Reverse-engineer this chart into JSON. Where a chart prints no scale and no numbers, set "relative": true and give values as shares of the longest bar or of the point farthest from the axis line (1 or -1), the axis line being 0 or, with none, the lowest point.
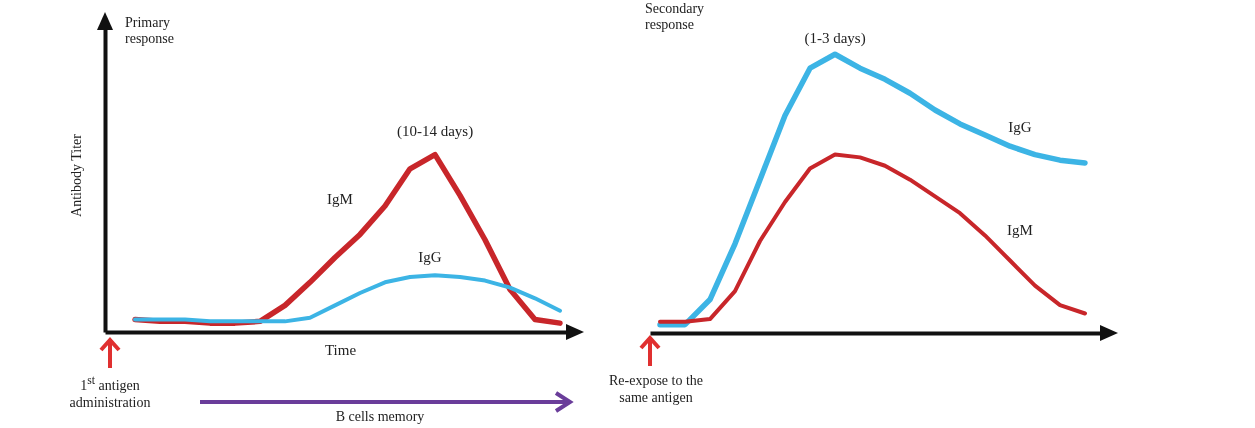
{
  "chart_data": [
    {
      "type": "line",
      "title": "Primary response",
      "ylabel": "Antibody Titer",
      "xlabel": "Time",
      "relative": true,
      "categories": [
        null,
        null,
        null,
        null,
        null,
        null,
        null,
        null,
        null,
        null,
        null,
        null,
        null,
        null,
        null,
        null,
        null,
        null
      ],
      "series": [
        {
          "name": "IgM",
          "color": "#c8262a",
          "values": [
            0.07,
            0.06,
            0.06,
            0.05,
            0.05,
            0.06,
            0.15,
            0.28,
            0.42,
            0.55,
            0.71,
            0.92,
            1.0,
            0.77,
            0.52,
            0.24,
            0.07,
            0.05
          ]
        },
        {
          "name": "IgG",
          "color": "#3cb4e5",
          "values": [
            0.07,
            0.07,
            0.07,
            0.06,
            0.06,
            0.06,
            0.06,
            0.08,
            0.15,
            0.22,
            0.28,
            0.31,
            0.32,
            0.31,
            0.29,
            0.25,
            0.19,
            0.12
          ]
        }
      ],
      "marker": "none",
      "line_style": "solid",
      "grid": false,
      "annotations": [
        "(10-14 days)",
        "1$^{st}$ antigen administration",
        "B cells memory"
      ]
    },
    {
      "type": "line",
      "title": "Secondary response",
      "relative": true,
      "categories": [
        null,
        null,
        null,
        null,
        null,
        null,
        null,
        null,
        null,
        null,
        null,
        null,
        null,
        null,
        null,
        null,
        null,
        null
      ],
      "series": [
        {
          "name": "IgG",
          "color": "#3cb4e5",
          "values": [
            0.03,
            0.03,
            0.12,
            0.32,
            0.55,
            0.78,
            0.95,
            1.0,
            0.95,
            0.91,
            0.86,
            0.8,
            0.75,
            0.71,
            0.67,
            0.64,
            0.62,
            0.61
          ]
        },
        {
          "name": "IgM",
          "color": "#c8262a",
          "values": [
            0.04,
            0.04,
            0.05,
            0.15,
            0.33,
            0.47,
            0.59,
            0.64,
            0.63,
            0.6,
            0.55,
            0.49,
            0.43,
            0.35,
            0.26,
            0.17,
            0.1,
            0.07
          ]
        }
      ],
      "marker": "none",
      "line_style": "solid",
      "grid": false,
      "annotations": [
        "(1-3 days)",
        "Re-expose to the same antigen"
      ]
    }
  ]
}
